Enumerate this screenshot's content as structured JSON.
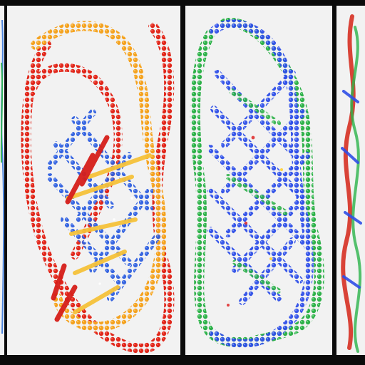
{
  "image": {
    "panels": [
      {
        "name": "left-edge-sliver",
        "palette": [
          "#3a78d8",
          "#2bb34a",
          "#111111"
        ]
      },
      {
        "name": "red-orange-knot",
        "palette": [
          "#e0271b",
          "#f4a21f",
          "#2f5fe0",
          "#ffffff"
        ]
      },
      {
        "name": "blue-green-knot",
        "palette": [
          "#2f4fe8",
          "#2fb14a",
          "#e03a3a",
          "#ffd23a"
        ]
      },
      {
        "name": "right-edge-sliver",
        "palette": [
          "#d7392c",
          "#2bb34a",
          "#2f4fe8"
        ]
      }
    ]
  }
}
